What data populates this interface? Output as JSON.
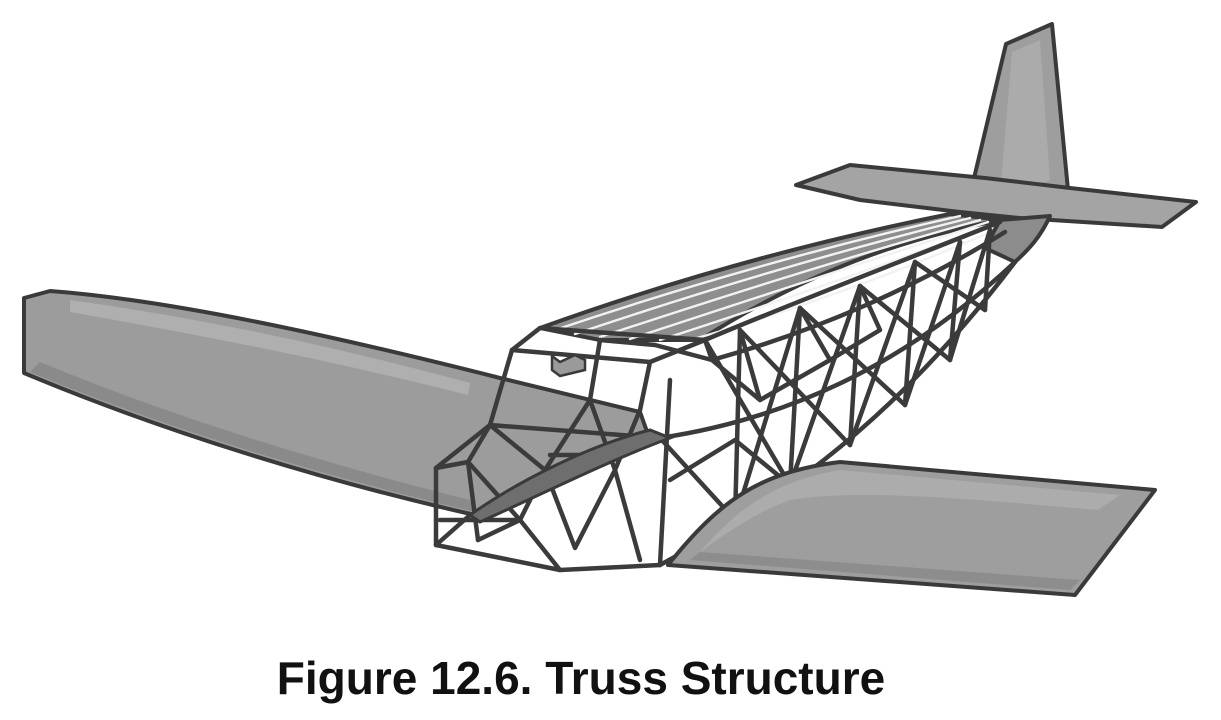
{
  "figure": {
    "caption": "Figure 12.6. Truss Structure",
    "colors": {
      "background": "#ffffff",
      "skin_fill": "#9e9e9e",
      "skin_highlight": "#b8b8b8",
      "skin_shadow": "#7a7a7a",
      "outline": "#3a3a3a"
    }
  }
}
